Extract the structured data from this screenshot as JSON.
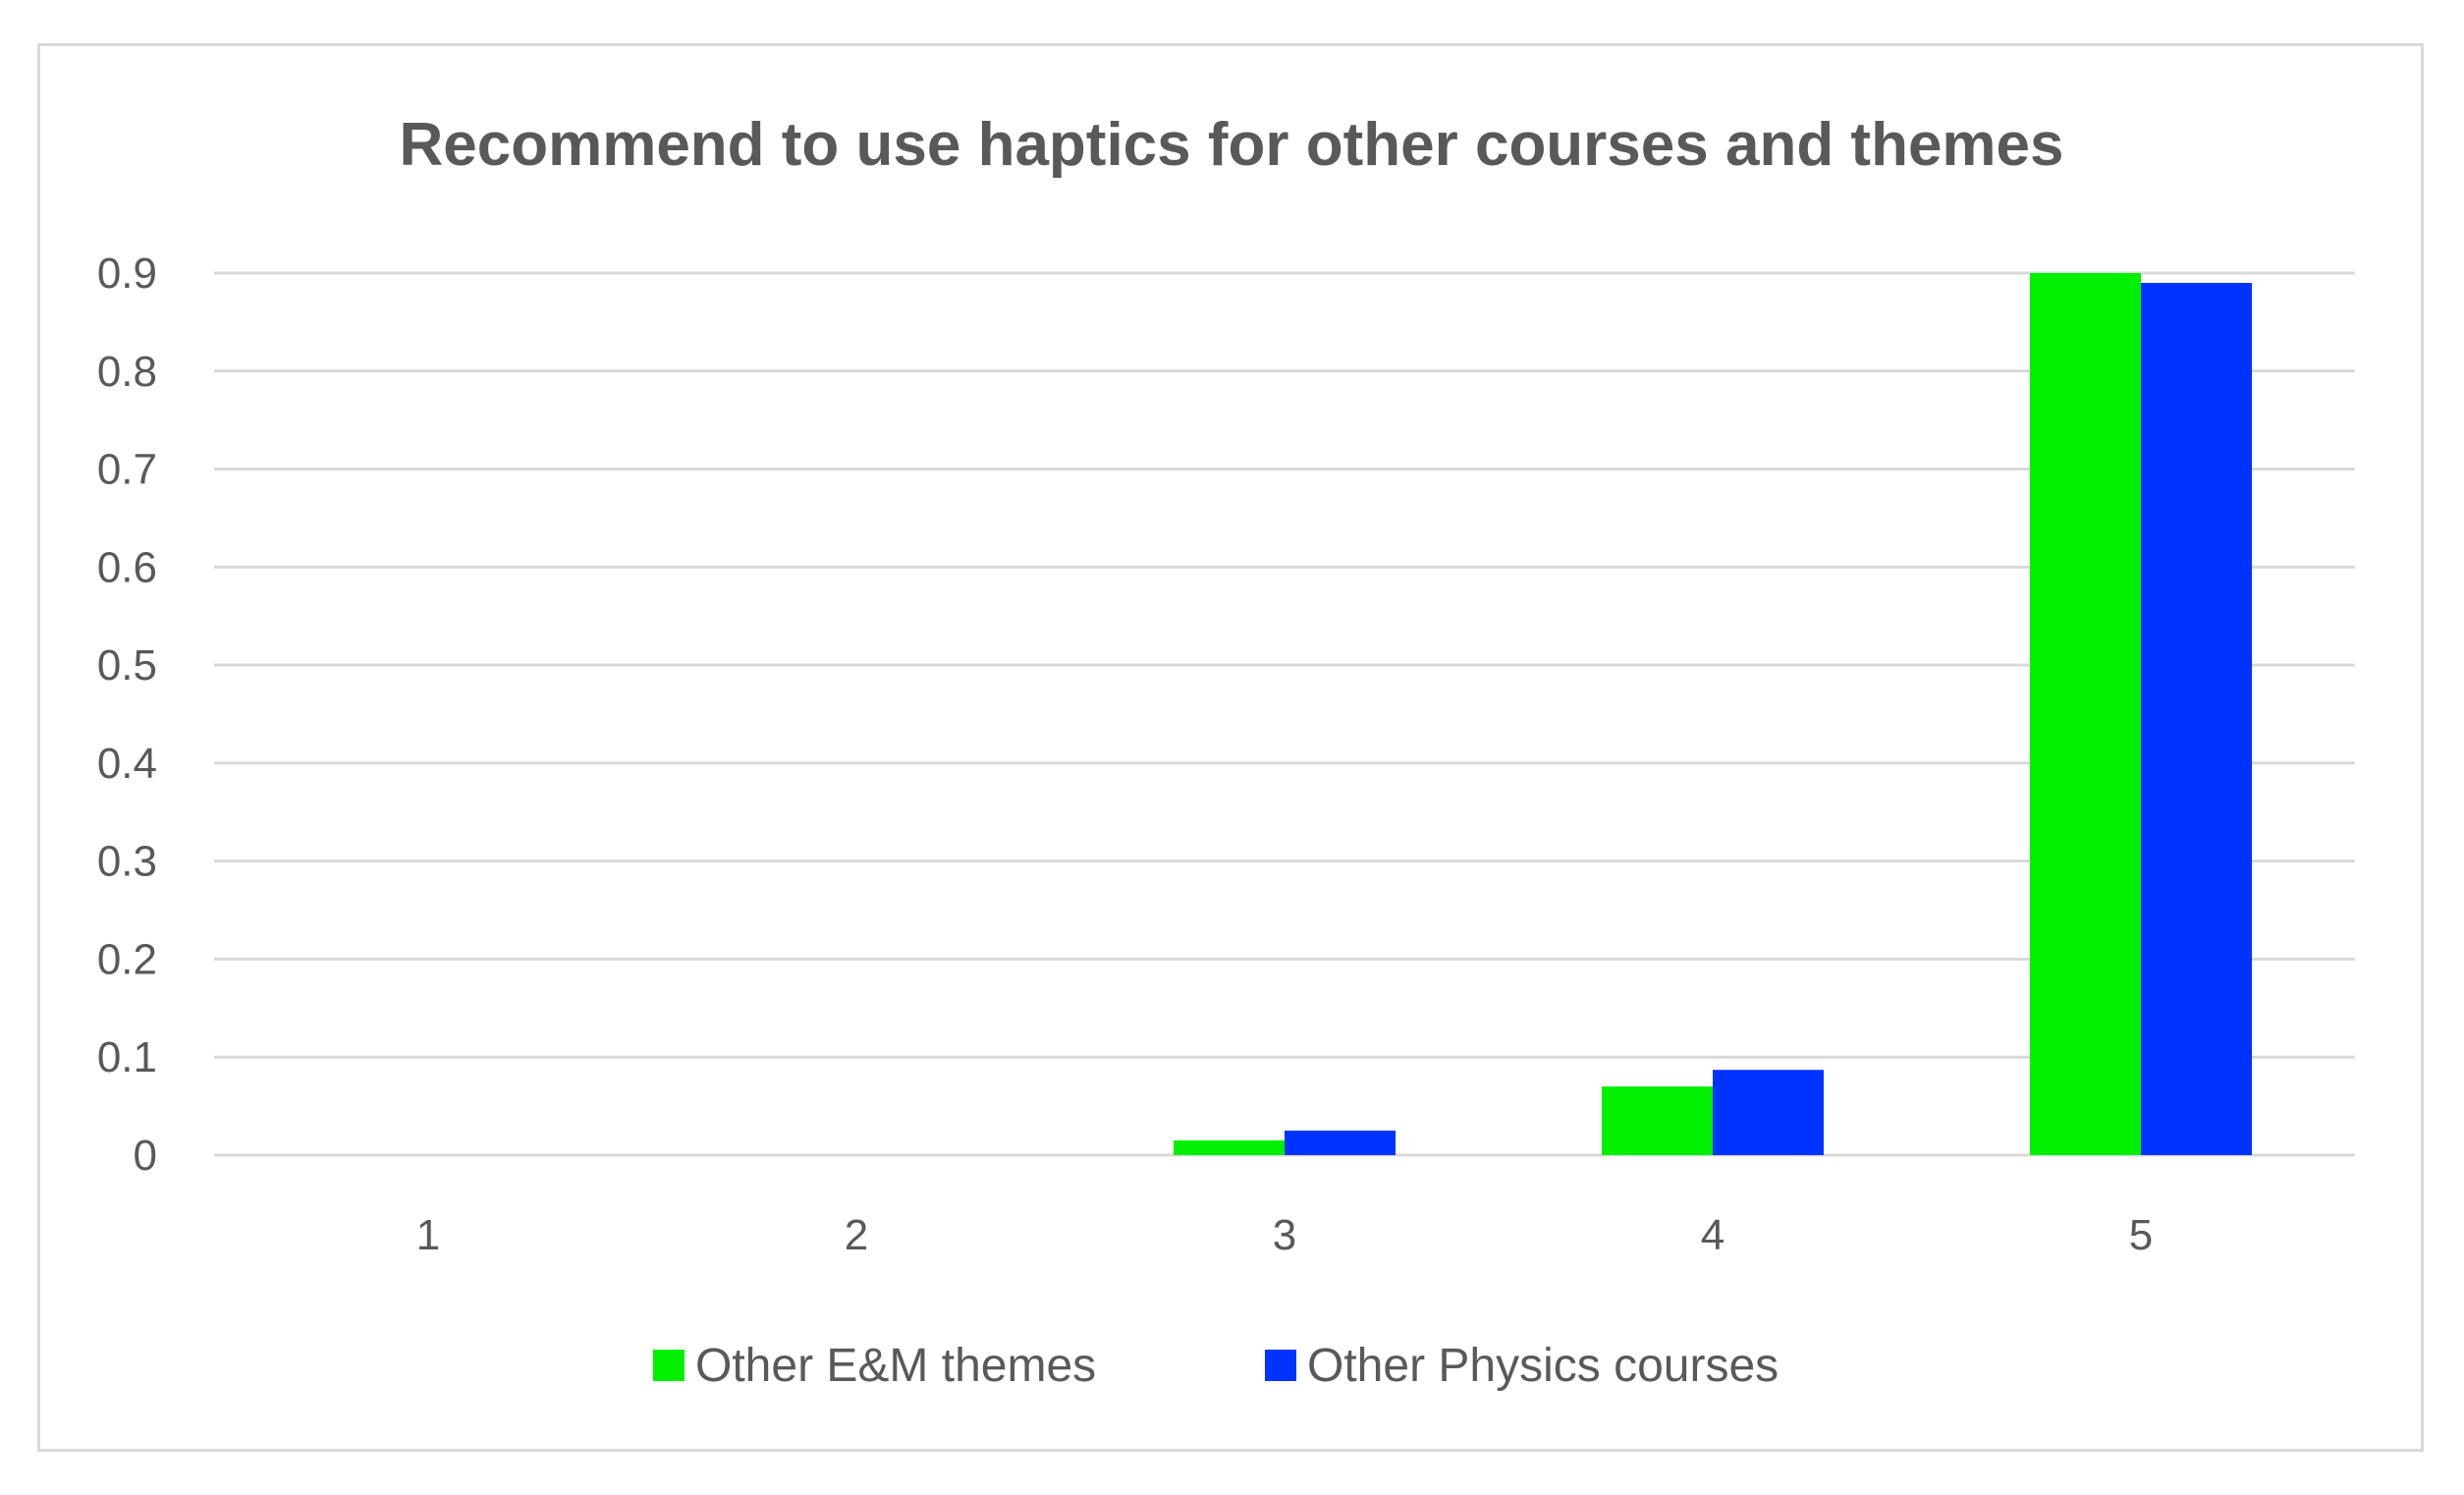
{
  "chart_data": {
    "type": "bar",
    "title": "Recommend to use haptics for other courses and themes",
    "xlabel": "",
    "ylabel": "",
    "categories": [
      "1",
      "2",
      "3",
      "4",
      "5"
    ],
    "series": [
      {
        "name": "Other E&M themes",
        "color": "#00f000",
        "values": [
          0,
          0,
          0.015,
          0.07,
          0.9
        ]
      },
      {
        "name": "Other Physics courses",
        "color": "#0033ff",
        "values": [
          0,
          0,
          0.025,
          0.087,
          0.89
        ]
      }
    ],
    "ylim": [
      0,
      0.9
    ],
    "yticks": [
      "0",
      "0.1",
      "0.2",
      "0.3",
      "0.4",
      "0.5",
      "0.6",
      "0.7",
      "0.8",
      "0.9"
    ],
    "grid": true,
    "legend_position": "bottom",
    "gridline_color": "#d9d9d9"
  }
}
